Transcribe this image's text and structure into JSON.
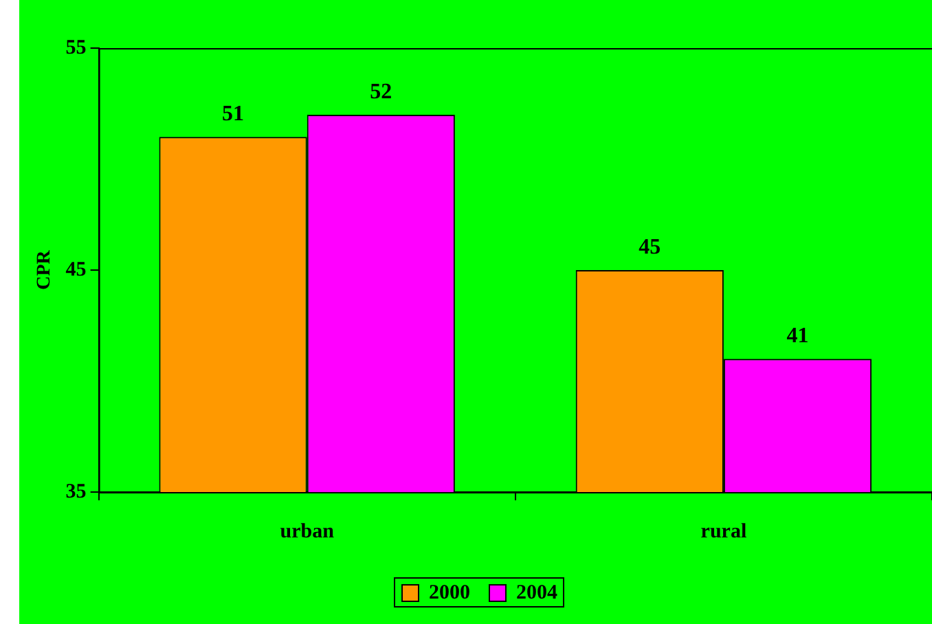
{
  "chart_data": {
    "type": "bar",
    "ylabel": "CPR",
    "categories": [
      "urban",
      "rural"
    ],
    "series": [
      {
        "name": "2000",
        "color": "#ff9900",
        "values": [
          51,
          45
        ]
      },
      {
        "name": "2004",
        "color": "#ff00ff",
        "values": [
          52,
          41
        ]
      }
    ],
    "ylim": [
      35,
      55
    ],
    "yticks": [
      35,
      45,
      55
    ],
    "grid": false,
    "legend": "bottom",
    "data_labels": true
  }
}
